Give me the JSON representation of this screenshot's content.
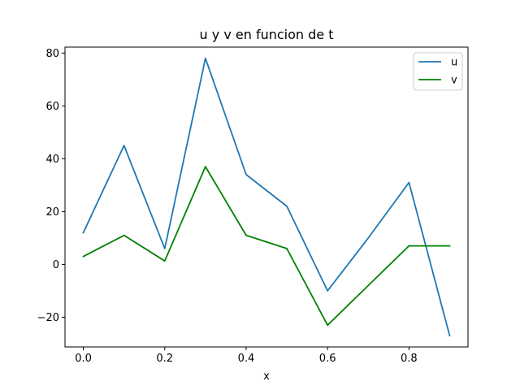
{
  "chart_data": {
    "type": "line",
    "title": "u y v en funcion de t",
    "xlabel": "x",
    "ylabel": "",
    "x": [
      0.0,
      0.1,
      0.2,
      0.3,
      0.4,
      0.5,
      0.6,
      0.7,
      0.8,
      0.9
    ],
    "xticks": [
      "0.0",
      "0.2",
      "0.4",
      "0.6",
      "0.8"
    ],
    "yticks": [
      "−20",
      "0",
      "20",
      "40",
      "60",
      "80"
    ],
    "xlim": [
      -0.045,
      0.945
    ],
    "ylim": [
      -31.25,
      82.25
    ],
    "grid": false,
    "legend_position": "top-right",
    "series": [
      {
        "name": "u",
        "color": "#1f77b4",
        "values": [
          12,
          45,
          6,
          78,
          34,
          22,
          -10,
          10,
          31,
          -27
        ]
      },
      {
        "name": "v",
        "color": "#008000",
        "values": [
          3,
          11,
          1.3,
          37,
          11,
          6,
          -23,
          -8,
          7,
          7
        ]
      }
    ]
  }
}
